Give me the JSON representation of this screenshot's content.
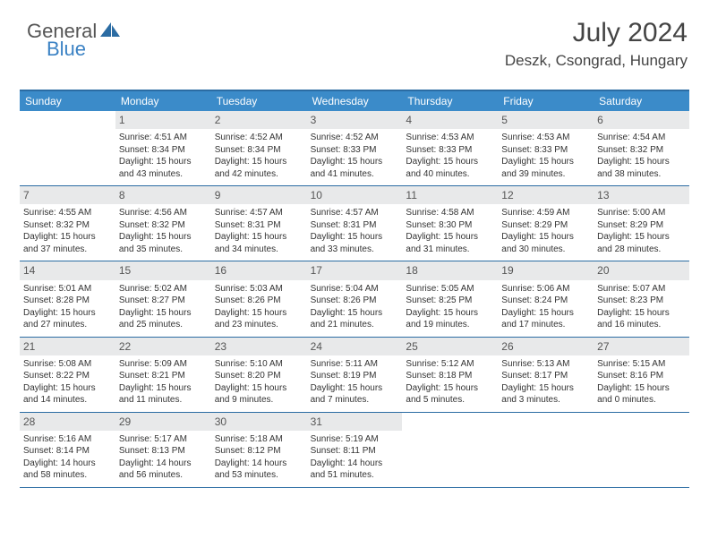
{
  "logo": {
    "word1": "General",
    "word2": "Blue",
    "text_color1": "#555555",
    "text_color2": "#3b82c4",
    "icon_color": "#2b6ca3"
  },
  "header": {
    "title": "July 2024",
    "location": "Deszk, Csongrad, Hungary"
  },
  "colors": {
    "header_bg": "#3b8bc9",
    "rule": "#2b6ca3",
    "daynum_bg": "#e8e9ea"
  },
  "day_labels": [
    "Sunday",
    "Monday",
    "Tuesday",
    "Wednesday",
    "Thursday",
    "Friday",
    "Saturday"
  ],
  "weeks": [
    [
      null,
      {
        "n": "1",
        "sr": "Sunrise: 4:51 AM",
        "ss": "Sunset: 8:34 PM",
        "d1": "Daylight: 15 hours",
        "d2": "and 43 minutes."
      },
      {
        "n": "2",
        "sr": "Sunrise: 4:52 AM",
        "ss": "Sunset: 8:34 PM",
        "d1": "Daylight: 15 hours",
        "d2": "and 42 minutes."
      },
      {
        "n": "3",
        "sr": "Sunrise: 4:52 AM",
        "ss": "Sunset: 8:33 PM",
        "d1": "Daylight: 15 hours",
        "d2": "and 41 minutes."
      },
      {
        "n": "4",
        "sr": "Sunrise: 4:53 AM",
        "ss": "Sunset: 8:33 PM",
        "d1": "Daylight: 15 hours",
        "d2": "and 40 minutes."
      },
      {
        "n": "5",
        "sr": "Sunrise: 4:53 AM",
        "ss": "Sunset: 8:33 PM",
        "d1": "Daylight: 15 hours",
        "d2": "and 39 minutes."
      },
      {
        "n": "6",
        "sr": "Sunrise: 4:54 AM",
        "ss": "Sunset: 8:32 PM",
        "d1": "Daylight: 15 hours",
        "d2": "and 38 minutes."
      }
    ],
    [
      {
        "n": "7",
        "sr": "Sunrise: 4:55 AM",
        "ss": "Sunset: 8:32 PM",
        "d1": "Daylight: 15 hours",
        "d2": "and 37 minutes."
      },
      {
        "n": "8",
        "sr": "Sunrise: 4:56 AM",
        "ss": "Sunset: 8:32 PM",
        "d1": "Daylight: 15 hours",
        "d2": "and 35 minutes."
      },
      {
        "n": "9",
        "sr": "Sunrise: 4:57 AM",
        "ss": "Sunset: 8:31 PM",
        "d1": "Daylight: 15 hours",
        "d2": "and 34 minutes."
      },
      {
        "n": "10",
        "sr": "Sunrise: 4:57 AM",
        "ss": "Sunset: 8:31 PM",
        "d1": "Daylight: 15 hours",
        "d2": "and 33 minutes."
      },
      {
        "n": "11",
        "sr": "Sunrise: 4:58 AM",
        "ss": "Sunset: 8:30 PM",
        "d1": "Daylight: 15 hours",
        "d2": "and 31 minutes."
      },
      {
        "n": "12",
        "sr": "Sunrise: 4:59 AM",
        "ss": "Sunset: 8:29 PM",
        "d1": "Daylight: 15 hours",
        "d2": "and 30 minutes."
      },
      {
        "n": "13",
        "sr": "Sunrise: 5:00 AM",
        "ss": "Sunset: 8:29 PM",
        "d1": "Daylight: 15 hours",
        "d2": "and 28 minutes."
      }
    ],
    [
      {
        "n": "14",
        "sr": "Sunrise: 5:01 AM",
        "ss": "Sunset: 8:28 PM",
        "d1": "Daylight: 15 hours",
        "d2": "and 27 minutes."
      },
      {
        "n": "15",
        "sr": "Sunrise: 5:02 AM",
        "ss": "Sunset: 8:27 PM",
        "d1": "Daylight: 15 hours",
        "d2": "and 25 minutes."
      },
      {
        "n": "16",
        "sr": "Sunrise: 5:03 AM",
        "ss": "Sunset: 8:26 PM",
        "d1": "Daylight: 15 hours",
        "d2": "and 23 minutes."
      },
      {
        "n": "17",
        "sr": "Sunrise: 5:04 AM",
        "ss": "Sunset: 8:26 PM",
        "d1": "Daylight: 15 hours",
        "d2": "and 21 minutes."
      },
      {
        "n": "18",
        "sr": "Sunrise: 5:05 AM",
        "ss": "Sunset: 8:25 PM",
        "d1": "Daylight: 15 hours",
        "d2": "and 19 minutes."
      },
      {
        "n": "19",
        "sr": "Sunrise: 5:06 AM",
        "ss": "Sunset: 8:24 PM",
        "d1": "Daylight: 15 hours",
        "d2": "and 17 minutes."
      },
      {
        "n": "20",
        "sr": "Sunrise: 5:07 AM",
        "ss": "Sunset: 8:23 PM",
        "d1": "Daylight: 15 hours",
        "d2": "and 16 minutes."
      }
    ],
    [
      {
        "n": "21",
        "sr": "Sunrise: 5:08 AM",
        "ss": "Sunset: 8:22 PM",
        "d1": "Daylight: 15 hours",
        "d2": "and 14 minutes."
      },
      {
        "n": "22",
        "sr": "Sunrise: 5:09 AM",
        "ss": "Sunset: 8:21 PM",
        "d1": "Daylight: 15 hours",
        "d2": "and 11 minutes."
      },
      {
        "n": "23",
        "sr": "Sunrise: 5:10 AM",
        "ss": "Sunset: 8:20 PM",
        "d1": "Daylight: 15 hours",
        "d2": "and 9 minutes."
      },
      {
        "n": "24",
        "sr": "Sunrise: 5:11 AM",
        "ss": "Sunset: 8:19 PM",
        "d1": "Daylight: 15 hours",
        "d2": "and 7 minutes."
      },
      {
        "n": "25",
        "sr": "Sunrise: 5:12 AM",
        "ss": "Sunset: 8:18 PM",
        "d1": "Daylight: 15 hours",
        "d2": "and 5 minutes."
      },
      {
        "n": "26",
        "sr": "Sunrise: 5:13 AM",
        "ss": "Sunset: 8:17 PM",
        "d1": "Daylight: 15 hours",
        "d2": "and 3 minutes."
      },
      {
        "n": "27",
        "sr": "Sunrise: 5:15 AM",
        "ss": "Sunset: 8:16 PM",
        "d1": "Daylight: 15 hours",
        "d2": "and 0 minutes."
      }
    ],
    [
      {
        "n": "28",
        "sr": "Sunrise: 5:16 AM",
        "ss": "Sunset: 8:14 PM",
        "d1": "Daylight: 14 hours",
        "d2": "and 58 minutes."
      },
      {
        "n": "29",
        "sr": "Sunrise: 5:17 AM",
        "ss": "Sunset: 8:13 PM",
        "d1": "Daylight: 14 hours",
        "d2": "and 56 minutes."
      },
      {
        "n": "30",
        "sr": "Sunrise: 5:18 AM",
        "ss": "Sunset: 8:12 PM",
        "d1": "Daylight: 14 hours",
        "d2": "and 53 minutes."
      },
      {
        "n": "31",
        "sr": "Sunrise: 5:19 AM",
        "ss": "Sunset: 8:11 PM",
        "d1": "Daylight: 14 hours",
        "d2": "and 51 minutes."
      },
      null,
      null,
      null
    ]
  ]
}
